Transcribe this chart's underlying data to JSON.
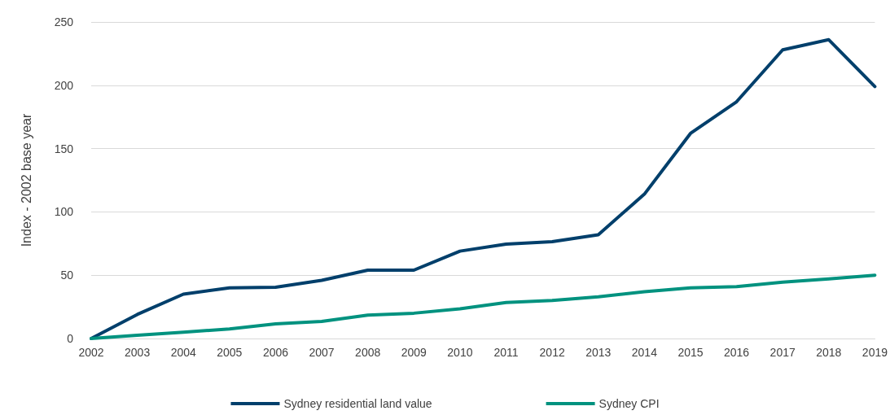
{
  "chart_data": {
    "type": "line",
    "ylabel": "Index - 2002 base year",
    "categories": [
      "2002",
      "2003",
      "2004",
      "2005",
      "2006",
      "2007",
      "2008",
      "2009",
      "2010",
      "2011",
      "2012",
      "2013",
      "2014",
      "2015",
      "2016",
      "2017",
      "2018",
      "2019"
    ],
    "series": [
      {
        "name": "Sydney residential land value",
        "color": "#003f6b",
        "values": [
          0,
          19,
          35,
          40,
          40.5,
          46,
          54,
          54,
          69,
          74.5,
          76.5,
          82,
          114,
          162,
          187,
          228,
          236,
          199
        ]
      },
      {
        "name": "Sydney CPI",
        "color": "#00927f",
        "values": [
          0,
          2.5,
          5,
          7.5,
          11.5,
          13.5,
          18.5,
          20,
          23.5,
          28.5,
          30,
          33,
          37,
          40,
          41,
          44.5,
          47,
          50
        ]
      }
    ],
    "ylim": [
      0,
      250
    ],
    "yticks": [
      0,
      50,
      100,
      150,
      200,
      250
    ],
    "grid": "y",
    "legend": "bottom",
    "marker": "none",
    "line_style": "solid"
  }
}
